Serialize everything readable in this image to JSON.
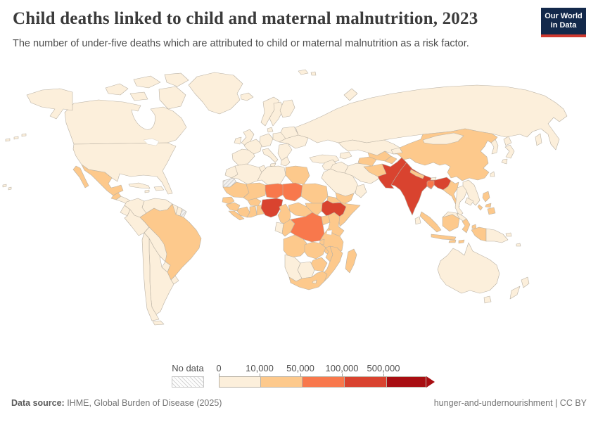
{
  "header": {
    "title": "Child deaths linked to child and maternal malnutrition, 2023",
    "subtitle": "The number of under-five deaths which are attributed to child or maternal malnutrition as a risk factor.",
    "logo_line1": "Our World",
    "logo_line2": "in Data"
  },
  "legend": {
    "no_data_label": "No data",
    "tick_labels": [
      "0",
      "10,000",
      "50,000",
      "100,000",
      "500,000"
    ]
  },
  "footer": {
    "source_label": "Data source:",
    "source_text": " IHME, Global Burden of Disease (2025)",
    "right_text": "hunger-and-undernourishment | CC BY"
  },
  "chart_data": {
    "type": "choropleth-map",
    "title": "Child deaths linked to child and maternal malnutrition, 2023",
    "year": "2023",
    "unit": "under-five deaths attributed to child or maternal malnutrition",
    "legend_position": "bottom",
    "bin_colors": [
      "#fcefdb",
      "#fdc98c",
      "#f8784c",
      "#d9432f",
      "#a80e12"
    ],
    "no_data_style": "gray diagonal hatch",
    "bins": [
      {
        "range": "0 – 10,000",
        "color": "#fcefdb"
      },
      {
        "range": "10,000 – 50,000",
        "color": "#fdc98c"
      },
      {
        "range": "50,000 – 100,000",
        "color": "#f8784c"
      },
      {
        "range": "100,000 – 500,000",
        "color": "#d9432f"
      },
      {
        "range": "500,000 +",
        "color": "#a80e12"
      }
    ],
    "regions": {
      "greenland": {
        "name": "Greenland",
        "bin": 1
      },
      "iceland": {
        "name": "Iceland",
        "bin": 1
      },
      "svalbard-1": {
        "name": "Svalbard",
        "bin": 1
      },
      "svalbard-2": {
        "name": "Svalbard",
        "bin": 1
      },
      "canada": {
        "name": "Canada",
        "bin": 1
      },
      "canada-arctic-1": {
        "name": "Canada (arctic)",
        "bin": 1
      },
      "canada-arctic-2": {
        "name": "Canada (arctic)",
        "bin": 1
      },
      "canada-arctic-3": {
        "name": "Canada (arctic)",
        "bin": 1
      },
      "canada-arctic-4": {
        "name": "Canada (Baffin)",
        "bin": 1
      },
      "canada-arctic-5": {
        "name": "Canada (arctic)",
        "bin": 1
      },
      "alaska": {
        "name": "United States (Alaska)",
        "bin": 1
      },
      "aleutians-1": {
        "name": "Aleutian Islands",
        "bin": 1
      },
      "aleutians-2": {
        "name": "Aleutian Islands",
        "bin": 1
      },
      "aleutians-3": {
        "name": "Aleutian Islands",
        "bin": 1
      },
      "hawaii-1": {
        "name": "Hawaii",
        "bin": 1
      },
      "hawaii-2": {
        "name": "Hawaii",
        "bin": 1
      },
      "usa": {
        "name": "United States",
        "bin": 1
      },
      "mexico": {
        "name": "Mexico",
        "bin": 2
      },
      "baja": {
        "name": "Mexico (Baja)",
        "bin": 2
      },
      "guatemala": {
        "name": "Guatemala",
        "bin": 2
      },
      "central-america": {
        "name": "Central America",
        "bin": 1
      },
      "cuba": {
        "name": "Cuba",
        "bin": 1
      },
      "hispaniola": {
        "name": "Hispaniola",
        "bin": 1
      },
      "jamaica": {
        "name": "Jamaica",
        "bin": 1
      },
      "colombia": {
        "name": "Colombia",
        "bin": 1
      },
      "venezuela": {
        "name": "Venezuela",
        "bin": 1
      },
      "guyana": {
        "name": "Guyana",
        "bin": 1
      },
      "suriname": {
        "name": "Suriname",
        "bin": 1
      },
      "french-guiana": {
        "name": "French Guiana",
        "bin": 0
      },
      "ecuador": {
        "name": "Ecuador",
        "bin": 1
      },
      "peru": {
        "name": "Peru",
        "bin": 1
      },
      "brazil": {
        "name": "Brazil",
        "bin": 2
      },
      "bolivia": {
        "name": "Bolivia",
        "bin": 1
      },
      "paraguay": {
        "name": "Paraguay",
        "bin": 1
      },
      "uruguay": {
        "name": "Uruguay",
        "bin": 1
      },
      "argentina": {
        "name": "Argentina",
        "bin": 1
      },
      "chile": {
        "name": "Chile",
        "bin": 1
      },
      "tierra-del-fuego": {
        "name": "Tierra del Fuego",
        "bin": 1
      },
      "norway": {
        "name": "Norway",
        "bin": 1
      },
      "sweden": {
        "name": "Sweden",
        "bin": 1
      },
      "finland": {
        "name": "Finland",
        "bin": 1
      },
      "denmark": {
        "name": "Denmark",
        "bin": 1
      },
      "uk": {
        "name": "United Kingdom",
        "bin": 1
      },
      "ireland": {
        "name": "Ireland",
        "bin": 1
      },
      "iberia": {
        "name": "Spain / Portugal",
        "bin": 1
      },
      "france": {
        "name": "France",
        "bin": 1
      },
      "germany": {
        "name": "Germany / Low Countries",
        "bin": 1
      },
      "poland": {
        "name": "Poland",
        "bin": 1
      },
      "italy": {
        "name": "Italy",
        "bin": 1
      },
      "sicily": {
        "name": "Sicily",
        "bin": 1
      },
      "balkans": {
        "name": "Balkans",
        "bin": 1
      },
      "greece": {
        "name": "Greece",
        "bin": 1
      },
      "ukraine": {
        "name": "Ukraine",
        "bin": 1
      },
      "belarus-baltics": {
        "name": "Belarus / Baltics",
        "bin": 1
      },
      "russia": {
        "name": "Russia",
        "bin": 1
      },
      "sakhalin": {
        "name": "Sakhalin",
        "bin": 1
      },
      "novaya-zemlya": {
        "name": "Novaya Zemlya",
        "bin": 1
      },
      "kazakhstan": {
        "name": "Kazakhstan",
        "bin": 1
      },
      "uzbekistan": {
        "name": "Uzbekistan",
        "bin": 2
      },
      "turkmenistan": {
        "name": "Turkmenistan",
        "bin": 2
      },
      "kyrgyzstan": {
        "name": "Kyrgyzstan",
        "bin": 1
      },
      "tajikistan": {
        "name": "Tajikistan",
        "bin": 2
      },
      "afghanistan": {
        "name": "Afghanistan",
        "bin": 2
      },
      "pakistan": {
        "name": "Pakistan",
        "bin": 4
      },
      "india": {
        "name": "India",
        "bin": 4
      },
      "nepal": {
        "name": "Nepal",
        "bin": 2
      },
      "bhutan": {
        "name": "Bhutan",
        "bin": 1
      },
      "bangladesh": {
        "name": "Bangladesh",
        "bin": 3
      },
      "sri-lanka": {
        "name": "Sri Lanka",
        "bin": 1
      },
      "myanmar": {
        "name": "Myanmar",
        "bin": 2
      },
      "china": {
        "name": "China",
        "bin": 2
      },
      "mongolia": {
        "name": "Mongolia",
        "bin": 1
      },
      "korea": {
        "name": "Korea",
        "bin": 1
      },
      "japan-hokkaido": {
        "name": "Japan (Hokkaido)",
        "bin": 1
      },
      "japan-honshu": {
        "name": "Japan (Honshu)",
        "bin": 1
      },
      "japan-kyushu": {
        "name": "Japan (Kyushu)",
        "bin": 1
      },
      "taiwan": {
        "name": "Taiwan",
        "bin": 1
      },
      "thailand": {
        "name": "Thailand",
        "bin": 1
      },
      "laos-vietnam": {
        "name": "Laos / Vietnam",
        "bin": 1
      },
      "cambodia": {
        "name": "Cambodia",
        "bin": 1
      },
      "malaysia": {
        "name": "Malaysia (peninsula)",
        "bin": 1
      },
      "malaysian-borneo": {
        "name": "Malaysia (Borneo)",
        "bin": 1
      },
      "sumatra": {
        "name": "Indonesia (Sumatra)",
        "bin": 2
      },
      "java": {
        "name": "Indonesia (Java)",
        "bin": 2
      },
      "kalimantan": {
        "name": "Indonesia (Kalimantan)",
        "bin": 2
      },
      "sulawesi": {
        "name": "Indonesia (Sulawesi)",
        "bin": 2
      },
      "lesser-sunda-1": {
        "name": "Indonesia (Lesser Sunda)",
        "bin": 2
      },
      "lesser-sunda-2": {
        "name": "Indonesia (Lesser Sunda)",
        "bin": 2
      },
      "moluccas-1": {
        "name": "Indonesia (Moluccas)",
        "bin": 2
      },
      "moluccas-2": {
        "name": "Indonesia (Moluccas)",
        "bin": 2
      },
      "west-papua": {
        "name": "Indonesia (Papua)",
        "bin": 2
      },
      "png": {
        "name": "Papua New Guinea",
        "bin": 1
      },
      "new-britain": {
        "name": "New Britain",
        "bin": 1
      },
      "pacific-islands": {
        "name": "Pacific Islands",
        "bin": 1
      },
      "luzon": {
        "name": "Philippines (Luzon)",
        "bin": 2
      },
      "visayas": {
        "name": "Philippines (Visayas)",
        "bin": 2
      },
      "mindanao": {
        "name": "Philippines (Mindanao)",
        "bin": 2
      },
      "palawan": {
        "name": "Philippines (Palawan)",
        "bin": 2
      },
      "australia": {
        "name": "Australia",
        "bin": 1
      },
      "tasmania": {
        "name": "Tasmania",
        "bin": 1
      },
      "nz-north": {
        "name": "New Zealand (North)",
        "bin": 1
      },
      "nz-south": {
        "name": "New Zealand (South)",
        "bin": 1
      },
      "morocco": {
        "name": "Morocco",
        "bin": 1
      },
      "tunisia": {
        "name": "Tunisia",
        "bin": 1
      },
      "algeria": {
        "name": "Algeria",
        "bin": 1
      },
      "libya": {
        "name": "Libya",
        "bin": 1
      },
      "egypt": {
        "name": "Egypt",
        "bin": 2
      },
      "western-sahara": {
        "name": "Western Sahara",
        "bin": 0
      },
      "mauritania": {
        "name": "Mauritania",
        "bin": 2
      },
      "senegal": {
        "name": "Senegal",
        "bin": 2
      },
      "guinea": {
        "name": "Guinea",
        "bin": 2
      },
      "sierra-leone-liberia": {
        "name": "Sierra Leone / Liberia",
        "bin": 2
      },
      "mali": {
        "name": "Mali",
        "bin": 2
      },
      "burkina": {
        "name": "Burkina Faso",
        "bin": 2
      },
      "cote-divoire": {
        "name": "Côte d'Ivoire",
        "bin": 2
      },
      "ghana": {
        "name": "Ghana",
        "bin": 2
      },
      "togo-benin": {
        "name": "Togo / Benin",
        "bin": 2
      },
      "niger": {
        "name": "Niger",
        "bin": 3
      },
      "nigeria": {
        "name": "Nigeria",
        "bin": 4
      },
      "chad": {
        "name": "Chad",
        "bin": 3
      },
      "sudan": {
        "name": "Sudan",
        "bin": 2
      },
      "eritrea": {
        "name": "Eritrea",
        "bin": 2
      },
      "ethiopia": {
        "name": "Ethiopia",
        "bin": 4
      },
      "somalia": {
        "name": "Somalia",
        "bin": 2
      },
      "south-sudan": {
        "name": "South Sudan",
        "bin": 2
      },
      "car": {
        "name": "Central African Republic",
        "bin": 2
      },
      "cameroon": {
        "name": "Cameroon",
        "bin": 2
      },
      "gabon": {
        "name": "Gabon / Eq. Guinea",
        "bin": 1
      },
      "congo": {
        "name": "Congo",
        "bin": 2
      },
      "drc": {
        "name": "Democratic Republic of Congo",
        "bin": 3
      },
      "uganda": {
        "name": "Uganda",
        "bin": 2
      },
      "kenya": {
        "name": "Kenya",
        "bin": 2
      },
      "tanzania": {
        "name": "Tanzania",
        "bin": 2
      },
      "rwanda-burundi": {
        "name": "Rwanda / Burundi",
        "bin": 2
      },
      "angola": {
        "name": "Angola",
        "bin": 2
      },
      "zambia": {
        "name": "Zambia",
        "bin": 2
      },
      "malawi": {
        "name": "Malawi",
        "bin": 2
      },
      "mozambique": {
        "name": "Mozambique",
        "bin": 2
      },
      "zimbabwe": {
        "name": "Zimbabwe",
        "bin": 2
      },
      "botswana": {
        "name": "Botswana",
        "bin": 1
      },
      "namibia": {
        "name": "Namibia",
        "bin": 1
      },
      "south-africa": {
        "name": "South Africa",
        "bin": 2
      },
      "lesotho": {
        "name": "Lesotho",
        "bin": 1
      },
      "madagascar": {
        "name": "Madagascar",
        "bin": 2
      },
      "turkey": {
        "name": "Turkey",
        "bin": 1
      },
      "caucasus": {
        "name": "Caucasus",
        "bin": 1
      },
      "levant": {
        "name": "Syria / Jordan / Israel",
        "bin": 1
      },
      "iraq": {
        "name": "Iraq",
        "bin": 1
      },
      "iran": {
        "name": "Iran",
        "bin": 1
      },
      "saudi": {
        "name": "Saudi Arabia",
        "bin": 1
      },
      "yemen": {
        "name": "Yemen",
        "bin": 2
      },
      "oman": {
        "name": "Oman",
        "bin": 1
      }
    }
  }
}
